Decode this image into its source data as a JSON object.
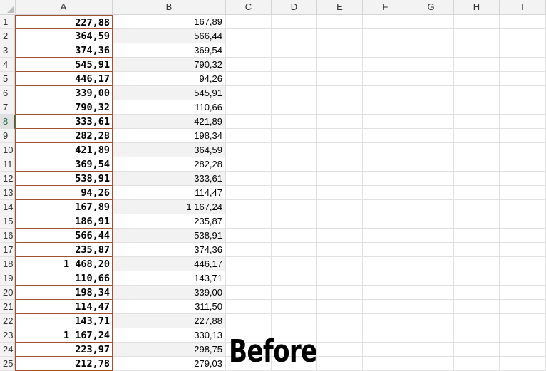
{
  "columns": [
    "A",
    "B",
    "C",
    "D",
    "E",
    "F",
    "G",
    "H",
    "I"
  ],
  "active_row": 8,
  "rows": [
    {
      "num": "1",
      "a": "227,88",
      "b": "167,89"
    },
    {
      "num": "2",
      "a": "364,59",
      "b": "566,44"
    },
    {
      "num": "3",
      "a": "374,36",
      "b": "369,54"
    },
    {
      "num": "4",
      "a": "545,91",
      "b": "790,32"
    },
    {
      "num": "5",
      "a": "446,17",
      "b": "94,26"
    },
    {
      "num": "6",
      "a": "339,00",
      "b": "545,91"
    },
    {
      "num": "7",
      "a": "790,32",
      "b": "110,66"
    },
    {
      "num": "8",
      "a": "333,61",
      "b": "421,89"
    },
    {
      "num": "9",
      "a": "282,28",
      "b": "198,34"
    },
    {
      "num": "10",
      "a": "421,89",
      "b": "364,59"
    },
    {
      "num": "11",
      "a": "369,54",
      "b": "282,28"
    },
    {
      "num": "12",
      "a": "538,91",
      "b": "333,61"
    },
    {
      "num": "13",
      "a": "94,26",
      "b": "114,47"
    },
    {
      "num": "14",
      "a": "167,89",
      "b": "1 167,24"
    },
    {
      "num": "15",
      "a": "186,91",
      "b": "235,87"
    },
    {
      "num": "16",
      "a": "566,44",
      "b": "538,91"
    },
    {
      "num": "17",
      "a": "235,87",
      "b": "374,36"
    },
    {
      "num": "18",
      "a": "1 468,20",
      "b": "446,17"
    },
    {
      "num": "19",
      "a": "110,66",
      "b": "143,71"
    },
    {
      "num": "20",
      "a": "198,34",
      "b": "339,00"
    },
    {
      "num": "21",
      "a": "114,47",
      "b": "311,50"
    },
    {
      "num": "22",
      "a": "143,71",
      "b": "227,88"
    },
    {
      "num": "23",
      "a": "1 167,24",
      "b": "330,13"
    },
    {
      "num": "24",
      "a": "223,97",
      "b": "298,75"
    },
    {
      "num": "25",
      "a": "212,78",
      "b": "279,03"
    }
  ],
  "overlay_text": "Before",
  "colors": {
    "accent_green": "#217346",
    "column_a_border": "#a0522d",
    "band_shade": "#f2f2f2"
  }
}
